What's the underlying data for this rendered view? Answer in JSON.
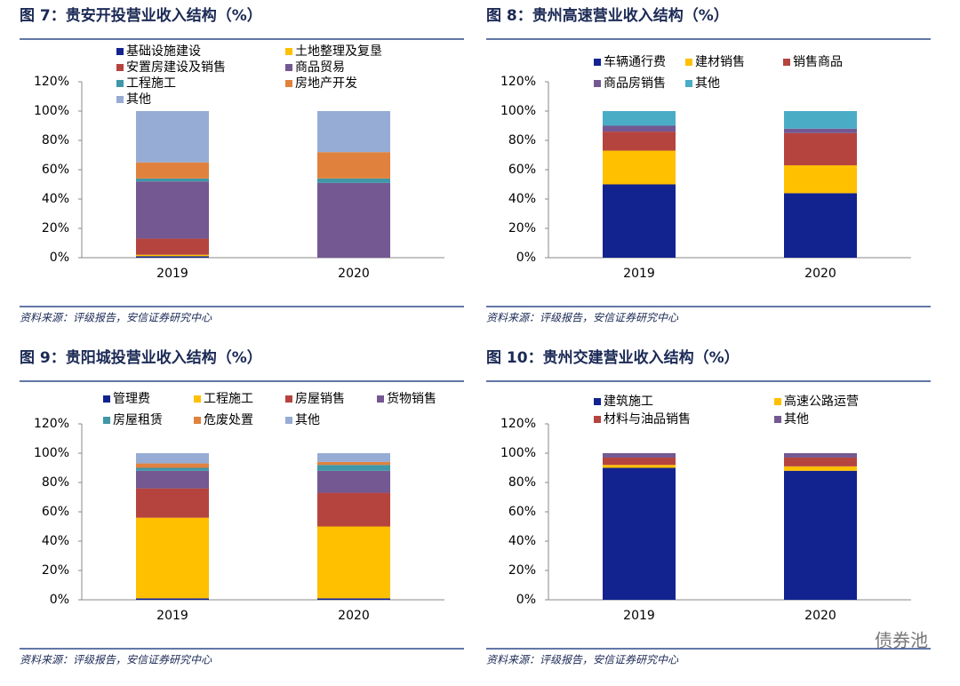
{
  "chart_data": [
    {
      "type": "bar",
      "stacked": true,
      "title": "图 7：贵安开投营业收入结构（%）",
      "source": "资料来源：评级报告，安信证券研究中心",
      "categories": [
        "2019",
        "2020"
      ],
      "series": [
        {
          "name": "基础设施建设",
          "color": "#12238f",
          "values": [
            1,
            0
          ]
        },
        {
          "name": "土地整理及复垦",
          "color": "#ffc000",
          "values": [
            1,
            0
          ]
        },
        {
          "name": "安置房建设及销售",
          "color": "#b5443f",
          "values": [
            11,
            0
          ]
        },
        {
          "name": "商品贸易",
          "color": "#735891",
          "values": [
            39,
            51
          ]
        },
        {
          "name": "工程施工",
          "color": "#3f97a7",
          "values": [
            2,
            3
          ]
        },
        {
          "name": "房地产开发",
          "color": "#e0823d",
          "values": [
            11,
            18
          ]
        },
        {
          "name": "其他",
          "color": "#96acd4",
          "values": [
            35,
            28
          ]
        }
      ],
      "ylim": [
        0,
        120
      ],
      "yticks": [
        {
          "value": 0,
          "label": "0%"
        },
        {
          "value": 20,
          "label": "20%"
        },
        {
          "value": 40,
          "label": "40%"
        },
        {
          "value": 60,
          "label": "60%"
        },
        {
          "value": 80,
          "label": "80%"
        },
        {
          "value": 100,
          "label": "100%"
        },
        {
          "value": 120,
          "label": "120%"
        }
      ]
    },
    {
      "type": "bar",
      "stacked": true,
      "title": "图 8：贵州高速营业收入结构（%）",
      "source": "资料来源：评级报告，安信证券研究中心",
      "categories": [
        "2019",
        "2020"
      ],
      "series": [
        {
          "name": "车辆通行费",
          "color": "#12238f",
          "values": [
            50,
            44
          ]
        },
        {
          "name": "建材销售",
          "color": "#ffc000",
          "values": [
            23,
            19
          ]
        },
        {
          "name": "销售商品",
          "color": "#b5443f",
          "values": [
            13,
            22
          ]
        },
        {
          "name": "商品房销售",
          "color": "#735891",
          "values": [
            4,
            3
          ]
        },
        {
          "name": "其他",
          "color": "#4bacc6",
          "values": [
            10,
            12
          ]
        }
      ],
      "ylim": [
        0,
        120
      ],
      "yticks": [
        {
          "value": 0,
          "label": "0%"
        },
        {
          "value": 20,
          "label": "20%"
        },
        {
          "value": 40,
          "label": "40%"
        },
        {
          "value": 60,
          "label": "60%"
        },
        {
          "value": 80,
          "label": "80%"
        },
        {
          "value": 100,
          "label": "100%"
        },
        {
          "value": 120,
          "label": "120%"
        }
      ]
    },
    {
      "type": "bar",
      "stacked": true,
      "title": "图 9：贵阳城投营业收入结构（%）",
      "source": "资料来源：评级报告，安信证券研究中心",
      "categories": [
        "2019",
        "2020"
      ],
      "series": [
        {
          "name": "管理费",
          "color": "#12238f",
          "values": [
            1,
            1
          ]
        },
        {
          "name": "工程施工",
          "color": "#ffc000",
          "values": [
            55,
            49
          ]
        },
        {
          "name": "房屋销售",
          "color": "#b5443f",
          "values": [
            20,
            23
          ]
        },
        {
          "name": "货物销售",
          "color": "#735891",
          "values": [
            12,
            15
          ]
        },
        {
          "name": "房屋租赁",
          "color": "#3f97a7",
          "values": [
            2,
            4
          ]
        },
        {
          "name": "危废处置",
          "color": "#e0823d",
          "values": [
            3,
            2
          ]
        },
        {
          "name": "其他",
          "color": "#96acd4",
          "values": [
            7,
            6
          ]
        }
      ],
      "ylim": [
        0,
        120
      ],
      "yticks": [
        {
          "value": 0,
          "label": "0%"
        },
        {
          "value": 20,
          "label": "20%"
        },
        {
          "value": 40,
          "label": "40%"
        },
        {
          "value": 60,
          "label": "60%"
        },
        {
          "value": 80,
          "label": "80%"
        },
        {
          "value": 100,
          "label": "100%"
        },
        {
          "value": 120,
          "label": "120%"
        }
      ]
    },
    {
      "type": "bar",
      "stacked": true,
      "title": "图 10：贵州交建营业收入结构（%）",
      "source": "资料来源：评级报告，安信证券研究中心",
      "categories": [
        "2019",
        "2020"
      ],
      "series": [
        {
          "name": "建筑施工",
          "color": "#12238f",
          "values": [
            90,
            88
          ]
        },
        {
          "name": "高速公路运营",
          "color": "#ffc000",
          "values": [
            2,
            3
          ]
        },
        {
          "name": "材料与油品销售",
          "color": "#b5443f",
          "values": [
            5,
            6
          ]
        },
        {
          "name": "其他",
          "color": "#735891",
          "values": [
            3,
            3
          ]
        }
      ],
      "ylim": [
        0,
        120
      ],
      "yticks": [
        {
          "value": 0,
          "label": "0%"
        },
        {
          "value": 20,
          "label": "20%"
        },
        {
          "value": 40,
          "label": "40%"
        },
        {
          "value": 60,
          "label": "60%"
        },
        {
          "value": 80,
          "label": "80%"
        },
        {
          "value": 100,
          "label": "100%"
        },
        {
          "value": 120,
          "label": "120%"
        }
      ]
    }
  ],
  "watermark": "债券池"
}
